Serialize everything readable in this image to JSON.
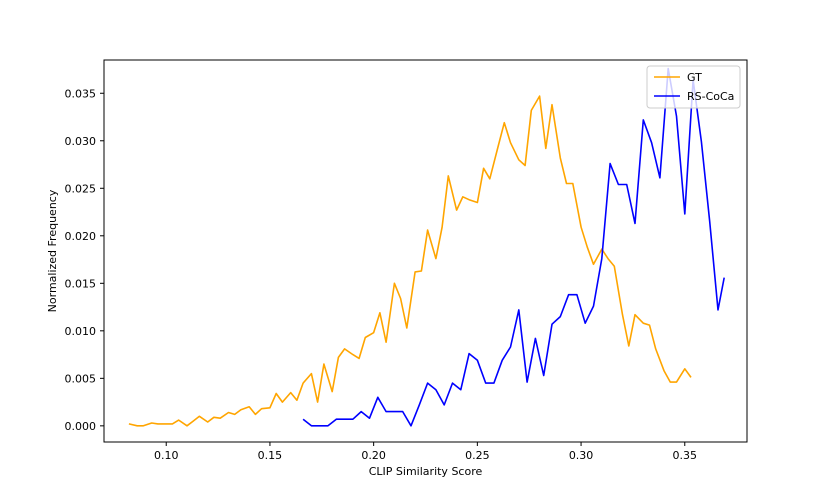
{
  "chart_data": {
    "type": "line",
    "xlabel": "CLIP Similarity Score",
    "ylabel": "Normalized Frequency",
    "xlim": [
      0.07,
      0.38
    ],
    "ylim": [
      -0.0017,
      0.0385
    ],
    "xticks": [
      0.1,
      0.15,
      0.2,
      0.25,
      0.3,
      0.35
    ],
    "xtick_labels": [
      "0.10",
      "0.15",
      "0.20",
      "0.25",
      "0.30",
      "0.35"
    ],
    "yticks": [
      0.0,
      0.005,
      0.01,
      0.015,
      0.02,
      0.025,
      0.03,
      0.035
    ],
    "ytick_labels": [
      "0.000",
      "0.005",
      "0.010",
      "0.015",
      "0.020",
      "0.025",
      "0.030",
      "0.035"
    ],
    "grid": false,
    "legend_position": "top-right",
    "series": [
      {
        "name": "GT",
        "color": "#FFA500",
        "x": [
          0.082,
          0.086,
          0.089,
          0.093,
          0.096,
          0.099,
          0.103,
          0.106,
          0.11,
          0.113,
          0.116,
          0.12,
          0.123,
          0.126,
          0.13,
          0.133,
          0.136,
          0.14,
          0.143,
          0.146,
          0.15,
          0.153,
          0.156,
          0.16,
          0.163,
          0.166,
          0.17,
          0.173,
          0.176,
          0.18,
          0.183,
          0.186,
          0.19,
          0.193,
          0.196,
          0.2,
          0.203,
          0.206,
          0.21,
          0.213,
          0.216,
          0.22,
          0.223,
          0.226,
          0.23,
          0.233,
          0.236,
          0.24,
          0.243,
          0.246,
          0.25,
          0.253,
          0.256,
          0.26,
          0.263,
          0.266,
          0.27,
          0.273,
          0.276,
          0.28,
          0.283,
          0.286,
          0.29,
          0.293,
          0.296,
          0.3,
          0.303,
          0.306,
          0.31,
          0.313,
          0.316,
          0.32,
          0.323,
          0.326,
          0.33,
          0.333,
          0.336,
          0.34,
          0.343,
          0.346,
          0.35,
          0.353
        ],
        "values": [
          0.0002,
          0.0,
          0.0,
          0.0003,
          0.0002,
          0.0002,
          0.0002,
          0.0006,
          0.0,
          0.0005,
          0.001,
          0.0004,
          0.0009,
          0.0008,
          0.0014,
          0.0012,
          0.0017,
          0.002,
          0.0012,
          0.0018,
          0.0019,
          0.0034,
          0.0025,
          0.0035,
          0.0027,
          0.0045,
          0.0055,
          0.0025,
          0.0065,
          0.0036,
          0.0072,
          0.0081,
          0.0075,
          0.0071,
          0.0093,
          0.0098,
          0.0119,
          0.0088,
          0.015,
          0.0134,
          0.0103,
          0.0162,
          0.0163,
          0.0206,
          0.0176,
          0.0209,
          0.0263,
          0.0227,
          0.0241,
          0.0238,
          0.0235,
          0.0271,
          0.026,
          0.0294,
          0.0319,
          0.0298,
          0.028,
          0.0274,
          0.0332,
          0.0347,
          0.0292,
          0.0338,
          0.0282,
          0.0255,
          0.0255,
          0.0209,
          0.0188,
          0.017,
          0.0186,
          0.0176,
          0.0168,
          0.0117,
          0.0084,
          0.0117,
          0.0108,
          0.0106,
          0.0081,
          0.0058,
          0.0046,
          0.0046,
          0.006,
          0.0051
        ]
      },
      {
        "name": "RS-CoCa",
        "color": "#0000FF",
        "x": [
          0.166,
          0.17,
          0.174,
          0.178,
          0.182,
          0.186,
          0.19,
          0.194,
          0.198,
          0.202,
          0.206,
          0.21,
          0.214,
          0.218,
          0.222,
          0.226,
          0.23,
          0.234,
          0.238,
          0.242,
          0.246,
          0.25,
          0.254,
          0.258,
          0.262,
          0.266,
          0.27,
          0.274,
          0.278,
          0.282,
          0.286,
          0.29,
          0.294,
          0.298,
          0.302,
          0.306,
          0.31,
          0.314,
          0.318,
          0.322,
          0.326,
          0.33,
          0.334,
          0.338,
          0.342,
          0.346,
          0.35,
          0.354,
          0.358,
          0.362,
          0.366,
          0.369
        ],
        "values": [
          0.0007,
          0.0,
          0.0,
          0.0,
          0.0007,
          0.0007,
          0.0007,
          0.0015,
          0.0008,
          0.003,
          0.0015,
          0.0015,
          0.0015,
          0.0,
          0.0022,
          0.0045,
          0.0038,
          0.0022,
          0.0045,
          0.0038,
          0.0076,
          0.0069,
          0.0045,
          0.0045,
          0.0069,
          0.0083,
          0.0122,
          0.0046,
          0.0092,
          0.0053,
          0.0107,
          0.0115,
          0.0138,
          0.0138,
          0.0108,
          0.0126,
          0.0176,
          0.0276,
          0.0254,
          0.0254,
          0.0213,
          0.0322,
          0.0298,
          0.0261,
          0.0376,
          0.0326,
          0.0223,
          0.0364,
          0.0299,
          0.0215,
          0.0122,
          0.0156
        ]
      }
    ]
  }
}
